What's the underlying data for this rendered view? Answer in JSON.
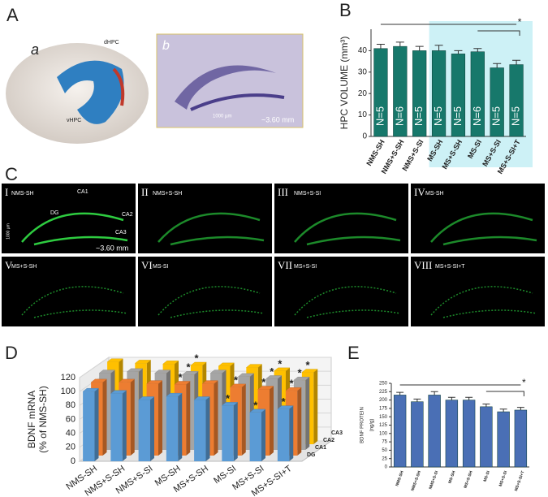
{
  "panels": {
    "A": "A",
    "a": "a",
    "dhpc": "dHPC",
    "vhpc": "vHPC",
    "b": "b",
    "scale_b": "1000 µm",
    "dist_b": "~3.60 mm",
    "B": "B",
    "C": "C",
    "D": "D",
    "E": "E"
  },
  "panel_c": {
    "tiles": [
      {
        "numeral": "I",
        "label": "NMS-SH"
      },
      {
        "numeral": "II",
        "label": "NMS+S-SH"
      },
      {
        "numeral": "III",
        "label": "NMS+S-SI"
      },
      {
        "numeral": "IV",
        "label": "MS-SH"
      },
      {
        "numeral": "V",
        "label": "MS+S-SH"
      },
      {
        "numeral": "VI",
        "label": "MS-SI"
      },
      {
        "numeral": "VII",
        "label": "MS+S-SI"
      },
      {
        "numeral": "VIII",
        "label": "MS+S-SI+T"
      }
    ],
    "regions": [
      "CA1",
      "DG",
      "CA2",
      "CA3"
    ],
    "distance": "~3.60 mm",
    "scale": "1000 µm"
  },
  "chart_data": [
    {
      "type": "bar",
      "ylabel": "HPC VOLUME (mm³)",
      "categories": [
        "NMS-SH",
        "NMS+S-SH",
        "NMS+S-SI",
        "MS-SH",
        "MS+S-SH",
        "MS-SI",
        "MS+S-SI",
        "MS+S-SI+T"
      ],
      "values": [
        41,
        42,
        40,
        40,
        38.5,
        39.5,
        32,
        33.5
      ],
      "errors": [
        2,
        2,
        2,
        2.5,
        1.5,
        1.5,
        2,
        2
      ],
      "bar_labels": [
        "N=5",
        "N=6",
        "N=5",
        "N=5",
        "N=5",
        "N=6",
        "N=5",
        "N=5"
      ],
      "color": "#17786b",
      "highlight_from": 3,
      "highlight_color": "#cdf1f6",
      "annotation": "*",
      "ylim": [
        0,
        50
      ],
      "yticks": [
        0,
        10,
        20,
        30,
        40
      ]
    },
    {
      "type": "bar3d",
      "ylabel": "BDNF mRNA",
      "ylabel_sub": "(% of NMS-SH)",
      "categories": [
        "NMS-SH",
        "NMS+S-SH",
        "NMS+S-SI",
        "MS-SH",
        "MS+S-SH",
        "MS-SI",
        "MS+S-SI",
        "MS+S-SI+T"
      ],
      "series": [
        {
          "name": "DG",
          "color": "#5b9bd5",
          "values": [
            100,
            97,
            88,
            93,
            88,
            80,
            70,
            75
          ],
          "stars": [
            5,
            6,
            7
          ]
        },
        {
          "name": "CA1",
          "color": "#ed7d31",
          "values": [
            105,
            105,
            103,
            102,
            103,
            98,
            95,
            93
          ],
          "stars": [
            3,
            5,
            6,
            7
          ]
        },
        {
          "name": "CA2",
          "color": "#a5a5a5",
          "values": [
            110,
            112,
            110,
            108,
            110,
            105,
            102,
            100
          ],
          "stars": [
            3,
            6,
            7
          ]
        },
        {
          "name": "CA3",
          "color": "#ffc000",
          "values": [
            118,
            116,
            115,
            113,
            112,
            110,
            105,
            103
          ],
          "stars": [
            3,
            6,
            7
          ]
        }
      ],
      "star": "*",
      "ylim": [
        0,
        120
      ],
      "yticks": [
        0,
        20,
        40,
        60,
        80,
        100,
        120
      ]
    },
    {
      "type": "bar",
      "ylabel": "BDNF PROTEIN",
      "ylabel_sub": "(ng/g)",
      "categories": [
        "NMS-SH",
        "NMS+S-SH",
        "NMS+S-SI",
        "MS-SH",
        "MS+S-SH",
        "MS-SI",
        "MS+S-SI",
        "MS+S-SI+T"
      ],
      "values": [
        215,
        195,
        215,
        200,
        200,
        180,
        165,
        170
      ],
      "errors": [
        8,
        8,
        10,
        8,
        8,
        8,
        8,
        8
      ],
      "color": "#4a6fb5",
      "annotation": "*",
      "ylim": [
        0,
        250
      ],
      "yticks": [
        0,
        25,
        50,
        75,
        100,
        125,
        150,
        175,
        200,
        225,
        250
      ]
    }
  ]
}
